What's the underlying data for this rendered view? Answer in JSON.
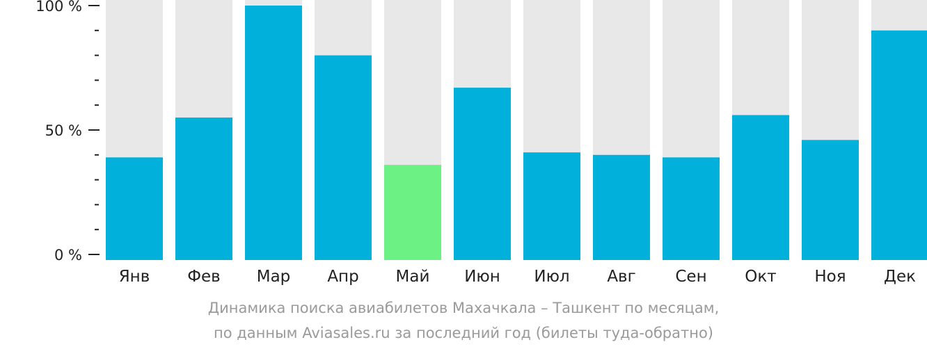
{
  "chart_data": {
    "type": "bar",
    "categories": [
      "Янв",
      "Фев",
      "Мар",
      "Апр",
      "Май",
      "Июн",
      "Июл",
      "Авг",
      "Сен",
      "Окт",
      "Ноя",
      "Дек"
    ],
    "values": [
      39,
      55,
      100,
      80,
      36,
      67,
      41,
      40,
      39,
      56,
      46,
      90
    ],
    "highlight_index": 4,
    "ylim": [
      0,
      100
    ],
    "yticks": [
      {
        "value": 0,
        "label": "0 %"
      },
      {
        "value": 50,
        "label": "50 %"
      },
      {
        "value": 100,
        "label": "100 %"
      }
    ],
    "minor_tick_step": 10,
    "grid": false,
    "colors": {
      "bar": "#02b0dc",
      "highlight": "#6cf185",
      "background_bar": "#e8e8e8",
      "axis": "#222222"
    }
  },
  "caption": {
    "line1": "Динамика поиска авиабилетов Махачкала – Ташкент по месяцам,",
    "line2": "по данным Aviasales.ru за последний год (билеты туда-обратно)"
  }
}
